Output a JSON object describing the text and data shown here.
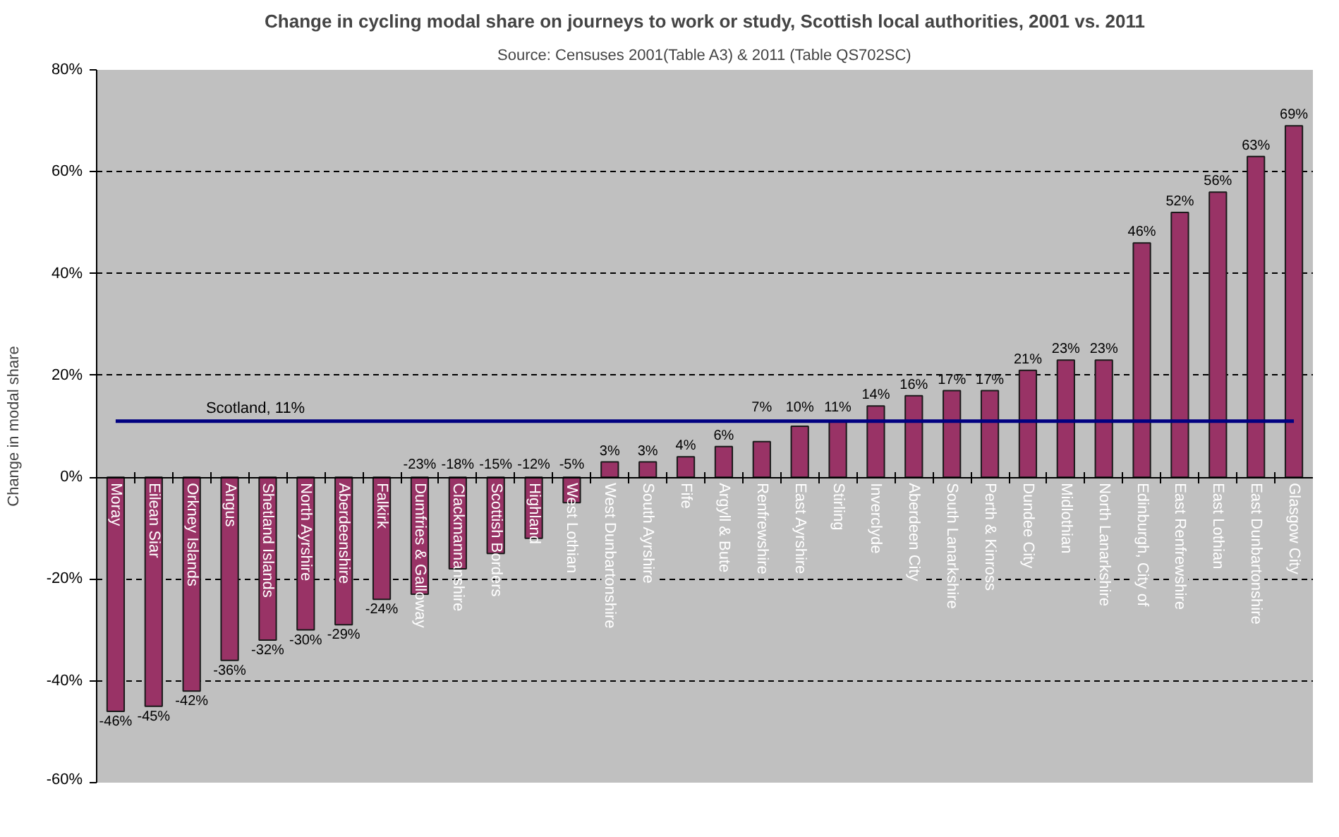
{
  "chart_data": {
    "type": "bar",
    "title": "Change in cycling modal share on journeys to work or study, Scottish local authorities, 2001 vs. 2011",
    "annotations": [
      "Source: Censuses 2001(Table A3) & 2011 (Table QS702SC)"
    ],
    "ylabel": "Change in modal share",
    "categories": [
      "Moray",
      "Eilean Siar",
      "Orkney Islands",
      "Angus",
      "Shetland Islands",
      "North Ayrshire",
      "Aberdeenshire",
      "Falkirk",
      "Dumfries & Galloway",
      "Clackmannanshire",
      "Scottish Borders",
      "Highland",
      "West Lothian",
      "West Dunbartonshire",
      "South Ayrshire",
      "Fife",
      "Argyll & Bute",
      "Renfrewshire",
      "East Ayrshire",
      "Stirling",
      "Inverclyde",
      "Aberdeen City",
      "South Lanarkshire",
      "Perth & Kinross",
      "Dundee City",
      "Midlothian",
      "North Lanarkshire",
      "Edinburgh, City of",
      "East Renfrewshire",
      "East Lothian",
      "East Dunbartonshire",
      "Glasgow City"
    ],
    "values": [
      -46,
      -45,
      -42,
      -36,
      -32,
      -30,
      -29,
      -24,
      -23,
      -18,
      -15,
      -12,
      -5,
      3,
      3,
      4,
      6,
      7,
      10,
      11,
      14,
      16,
      17,
      17,
      21,
      23,
      23,
      46,
      52,
      56,
      63,
      69
    ],
    "value_labels": [
      "-46%",
      "-45%",
      "-42%",
      "-36%",
      "-32%",
      "-30%",
      "-29%",
      "-24%",
      "-23%",
      "-18%",
      "-15%",
      "-12%",
      "-5%",
      "3%",
      "3%",
      "4%",
      "6%",
      "7%",
      "10%",
      "11%",
      "14%",
      "16%",
      "17%",
      "17%",
      "21%",
      "23%",
      "23%",
      "46%",
      "52%",
      "56%",
      "63%",
      "69%"
    ],
    "color": "#993366",
    "ylim": [
      -60,
      80
    ],
    "yticks": [
      {
        "value": -60,
        "label": "-60%"
      },
      {
        "value": -40,
        "label": "-40%"
      },
      {
        "value": -20,
        "label": "-20%"
      },
      {
        "value": 0,
        "label": "0%"
      },
      {
        "value": 20,
        "label": "20%"
      },
      {
        "value": 40,
        "label": "40%"
      },
      {
        "value": 60,
        "label": "60%"
      },
      {
        "value": 80,
        "label": "80%"
      }
    ],
    "grid": "y",
    "ref_lines": [
      {
        "axis": "y",
        "value": 11,
        "label": "Scotland, 11%",
        "color": "#000080"
      }
    ]
  }
}
